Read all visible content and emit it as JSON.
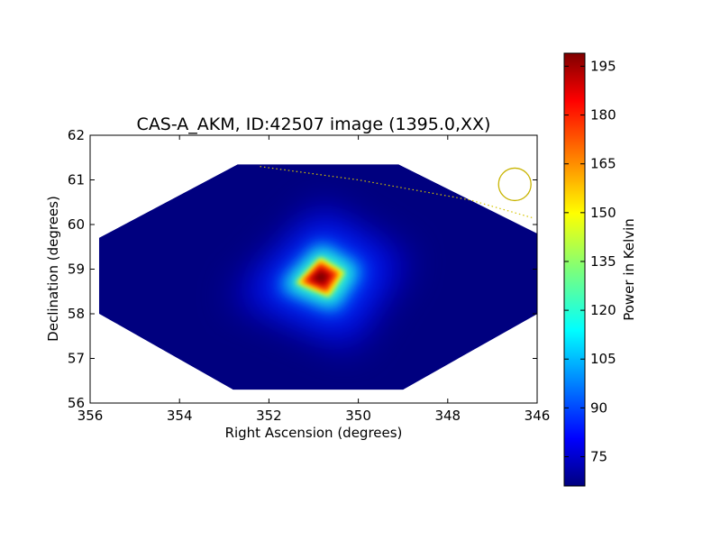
{
  "chart_data": {
    "type": "heatmap",
    "title": "CAS-A_AKM, ID:42507 image (1395.0,XX)",
    "xlabel": "Right Ascension (degrees)",
    "ylabel": "Declination (degrees)",
    "xlim": [
      356,
      346
    ],
    "ylim": [
      56,
      62
    ],
    "x_ticks": [
      "356",
      "354",
      "352",
      "350",
      "348",
      "346"
    ],
    "y_ticks": [
      "56",
      "57",
      "58",
      "59",
      "60",
      "61",
      "62"
    ],
    "colormap": "jet",
    "colorbar": {
      "label": "Power in Kelvin",
      "range": [
        66,
        199
      ],
      "ticks": [
        "75",
        "90",
        "105",
        "120",
        "135",
        "150",
        "165",
        "180",
        "195"
      ]
    },
    "background_level": 68,
    "sources": [
      {
        "ra": 350.85,
        "dec": 58.82,
        "peak": 199,
        "shape": "diamond"
      }
    ],
    "coverage_region": {
      "vertices": [
        [
          352.7,
          61.35
        ],
        [
          349.1,
          61.35
        ],
        [
          345.9,
          59.75
        ],
        [
          345.9,
          58.05
        ],
        [
          349.0,
          56.3
        ],
        [
          352.8,
          56.3
        ],
        [
          355.8,
          58.0
        ],
        [
          355.8,
          59.7
        ]
      ]
    },
    "overlay_track": {
      "color": "#d4c400",
      "style": "dotted",
      "points": [
        [
          352.2,
          61.3
        ],
        [
          350.0,
          61.0
        ],
        [
          347.5,
          60.55
        ],
        [
          346.1,
          60.15
        ]
      ]
    },
    "beam_marker": {
      "ra": 346.5,
      "dec": 60.9,
      "color": "#c8b400"
    }
  }
}
